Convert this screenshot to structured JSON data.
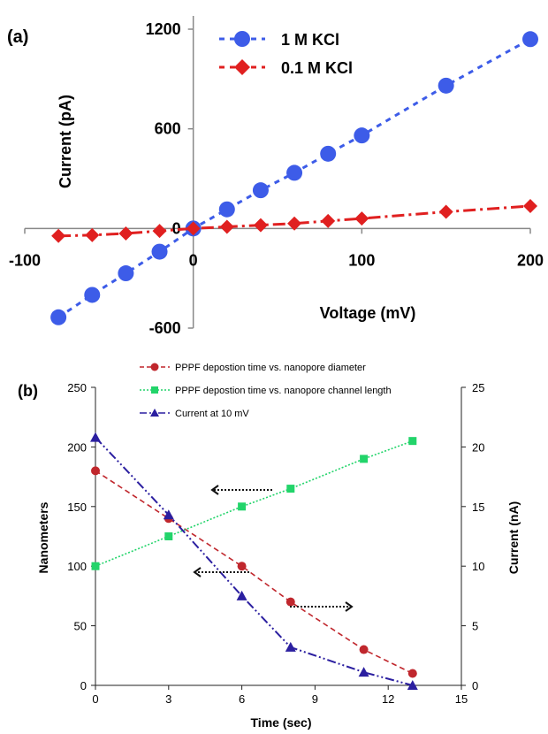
{
  "chart_data": [
    {
      "type": "line",
      "panel_label": "(a)",
      "xlabel": "Voltage (mV)",
      "ylabel": "Current (pA)",
      "xlim": [
        -100,
        200
      ],
      "ylim": [
        -600,
        1200
      ],
      "x_ticks": [
        "-100",
        "0",
        "100",
        "200"
      ],
      "y_ticks": [
        "-600",
        "0",
        "600",
        "1200"
      ],
      "grid": false,
      "legend_position": "top-center",
      "series": [
        {
          "name": "1 M KCl",
          "color": "#3d5ce8",
          "marker": "circle",
          "x": [
            -80,
            -60,
            -40,
            -20,
            0,
            20,
            40,
            60,
            80,
            100,
            150,
            200
          ],
          "y": [
            -535,
            -400,
            -270,
            -140,
            0,
            115,
            230,
            335,
            450,
            560,
            860,
            1140
          ]
        },
        {
          "name": "0.1 M KCl",
          "color": "#e02020",
          "marker": "diamond",
          "x": [
            -80,
            -60,
            -40,
            -20,
            0,
            20,
            40,
            60,
            80,
            100,
            150,
            200
          ],
          "y": [
            -45,
            -40,
            -30,
            -15,
            0,
            10,
            20,
            30,
            45,
            60,
            100,
            135
          ]
        }
      ]
    },
    {
      "type": "line",
      "panel_label": "(b)",
      "xlabel": "Time  (sec)",
      "ylabel": "Nanometers",
      "y2label": "Current (nA)",
      "xlim": [
        0,
        15
      ],
      "ylim": [
        0,
        250
      ],
      "y2lim": [
        0,
        25
      ],
      "x_ticks": [
        "0",
        "3",
        "6",
        "9",
        "12",
        "15"
      ],
      "y_ticks": [
        "0",
        "50",
        "100",
        "150",
        "200",
        "250"
      ],
      "y2_ticks": [
        "0",
        "5",
        "10",
        "15",
        "20",
        "25"
      ],
      "grid": false,
      "legend_position": "top",
      "series": [
        {
          "name": "PPPF depostion time vs. nanopore diameter",
          "color": "#c0272d",
          "marker": "circle",
          "axis": "left",
          "x": [
            0,
            3,
            6,
            8,
            11,
            13
          ],
          "y": [
            180,
            140,
            100,
            70,
            30,
            10
          ]
        },
        {
          "name": "PPPF depostion time vs. nanopore channel length",
          "color": "#22d46a",
          "marker": "square",
          "axis": "left",
          "x": [
            0,
            3,
            6,
            8,
            11,
            13
          ],
          "y": [
            100,
            125,
            150,
            165,
            190,
            205
          ]
        },
        {
          "name": "Current at 10 mV",
          "color": "#2b1fa0",
          "marker": "triangle",
          "axis": "right",
          "x": [
            0,
            3,
            6,
            8,
            11,
            13
          ],
          "y": [
            20.8,
            14.3,
            7.5,
            3.2,
            1.1,
            0
          ]
        }
      ]
    }
  ]
}
